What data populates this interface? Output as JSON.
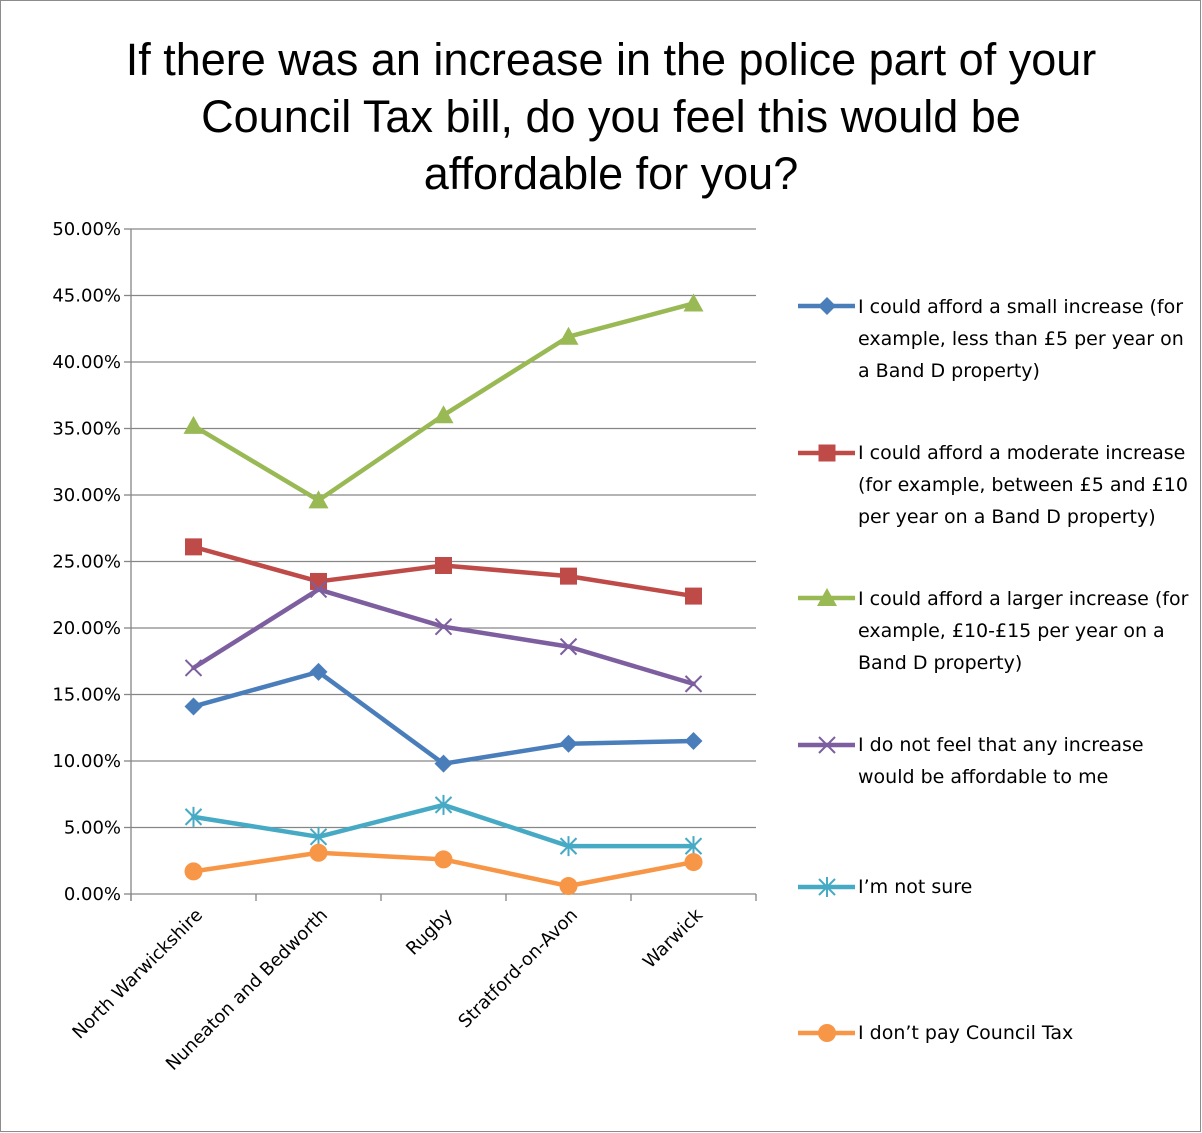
{
  "chart_data": {
    "type": "line",
    "title": "If there was an increase in the police part of your Council Tax bill, do you feel this would be affordable for you?",
    "categories": [
      "North Warwickshire",
      "Nuneaton and Bedworth",
      "Rugby",
      "Stratford-on-Avon",
      "Warwick"
    ],
    "ylim": [
      0,
      50
    ],
    "yticks": [
      "0.00%",
      "5.00%",
      "10.00%",
      "15.00%",
      "20.00%",
      "25.00%",
      "30.00%",
      "35.00%",
      "40.00%",
      "45.00%",
      "50.00%"
    ],
    "grid": true,
    "legend_position": "right",
    "series": [
      {
        "name": "I could afford a small increase (for example, less than £5 per year on a Band D property)",
        "color": "#4a7ebb",
        "marker": "diamond",
        "values": [
          14.1,
          16.7,
          9.8,
          11.3,
          11.5
        ]
      },
      {
        "name": "I could afford a moderate increase (for example, between £5 and £10 per year on a Band D property)",
        "color": "#be4b48",
        "marker": "square",
        "values": [
          26.1,
          23.5,
          24.7,
          23.9,
          22.4
        ]
      },
      {
        "name": "I could afford a larger increase (for example, £10-£15 per year on a Band D property)",
        "color": "#98b954",
        "marker": "triangle",
        "values": [
          35.2,
          29.6,
          36.0,
          41.9,
          44.4
        ]
      },
      {
        "name": "I do not feel that any increase would be affordable to me",
        "color": "#7d5fa0",
        "marker": "x",
        "values": [
          17.0,
          22.9,
          20.1,
          18.6,
          15.8
        ]
      },
      {
        "name": "I’m not sure",
        "color": "#46aac5",
        "marker": "star",
        "values": [
          5.8,
          4.3,
          6.7,
          3.6,
          3.6
        ]
      },
      {
        "name": "I don’t pay Council Tax",
        "color": "#f79646",
        "marker": "circle",
        "values": [
          1.7,
          3.1,
          2.6,
          0.6,
          2.4
        ]
      }
    ]
  }
}
